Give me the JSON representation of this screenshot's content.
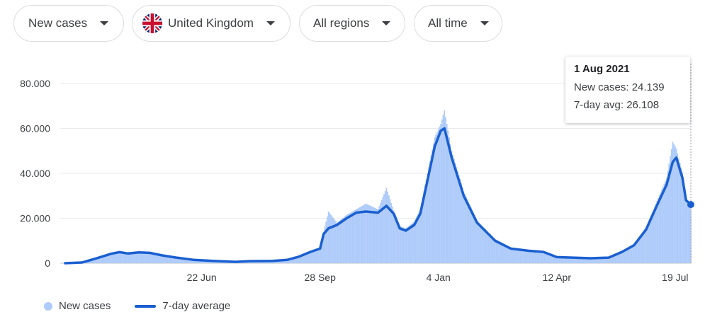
{
  "filters": {
    "metric": "New cases",
    "country": "United Kingdom",
    "region": "All regions",
    "period": "All time"
  },
  "tooltip": {
    "date": "1 Aug 2021",
    "new_cases": "New cases: 24.139",
    "avg": "7-day avg: 26.108"
  },
  "legend": {
    "new_cases": "New cases",
    "avg": "7-day average"
  },
  "colors": {
    "bars": "#aecbfa",
    "line": "#1a5fd0",
    "grid": "#e8eaed"
  },
  "chart_data": {
    "type": "bar",
    "overlay": "line",
    "x_start": "2020-03-01",
    "x_end": "2021-08-01",
    "ylim": [
      0,
      80000
    ],
    "y_ticks": [
      "0",
      "20.000",
      "40.000",
      "60.000",
      "80.000"
    ],
    "y_tick_values": [
      0,
      20000,
      40000,
      60000,
      80000
    ],
    "x_ticks": [
      {
        "label": "22 Jun",
        "date": "2020-06-22"
      },
      {
        "label": "28 Sep",
        "date": "2020-09-28"
      },
      {
        "label": "4 Jan",
        "date": "2021-01-04"
      },
      {
        "label": "12 Apr",
        "date": "2021-04-12"
      },
      {
        "label": "19 Jul",
        "date": "2021-07-19"
      }
    ],
    "series": [
      {
        "name": "7-day average",
        "points": [
          [
            "2020-03-01",
            0
          ],
          [
            "2020-03-15",
            300
          ],
          [
            "2020-03-29",
            2500
          ],
          [
            "2020-04-08",
            4200
          ],
          [
            "2020-04-15",
            4900
          ],
          [
            "2020-04-22",
            4300
          ],
          [
            "2020-05-01",
            4800
          ],
          [
            "2020-05-10",
            4600
          ],
          [
            "2020-05-20",
            3500
          ],
          [
            "2020-06-01",
            2500
          ],
          [
            "2020-06-15",
            1500
          ],
          [
            "2020-07-01",
            1000
          ],
          [
            "2020-07-20",
            600
          ],
          [
            "2020-08-01",
            900
          ],
          [
            "2020-08-20",
            1000
          ],
          [
            "2020-09-01",
            1500
          ],
          [
            "2020-09-10",
            2800
          ],
          [
            "2020-09-20",
            5000
          ],
          [
            "2020-09-28",
            6500
          ],
          [
            "2020-10-01",
            13000
          ],
          [
            "2020-10-05",
            15500
          ],
          [
            "2020-10-12",
            17000
          ],
          [
            "2020-10-20",
            20000
          ],
          [
            "2020-10-28",
            22500
          ],
          [
            "2020-11-05",
            23000
          ],
          [
            "2020-11-15",
            22500
          ],
          [
            "2020-11-22",
            25500
          ],
          [
            "2020-11-28",
            22000
          ],
          [
            "2020-12-03",
            15500
          ],
          [
            "2020-12-08",
            14500
          ],
          [
            "2020-12-15",
            17000
          ],
          [
            "2020-12-20",
            22000
          ],
          [
            "2020-12-26",
            37000
          ],
          [
            "2021-01-01",
            52000
          ],
          [
            "2021-01-06",
            59000
          ],
          [
            "2021-01-09",
            60000
          ],
          [
            "2021-01-15",
            47000
          ],
          [
            "2021-01-25",
            30000
          ],
          [
            "2021-02-05",
            18000
          ],
          [
            "2021-02-20",
            10000
          ],
          [
            "2021-03-05",
            6500
          ],
          [
            "2021-03-20",
            5500
          ],
          [
            "2021-04-01",
            5000
          ],
          [
            "2021-04-12",
            2700
          ],
          [
            "2021-04-25",
            2500
          ],
          [
            "2021-05-10",
            2200
          ],
          [
            "2021-05-25",
            2500
          ],
          [
            "2021-06-05",
            5000
          ],
          [
            "2021-06-15",
            8000
          ],
          [
            "2021-06-25",
            15000
          ],
          [
            "2021-07-05",
            27000
          ],
          [
            "2021-07-12",
            35000
          ],
          [
            "2021-07-17",
            45000
          ],
          [
            "2021-07-20",
            47000
          ],
          [
            "2021-07-25",
            38000
          ],
          [
            "2021-07-28",
            28000
          ],
          [
            "2021-08-01",
            26108
          ]
        ]
      },
      {
        "name": "New cases",
        "points": [
          [
            "2020-03-01",
            0
          ],
          [
            "2020-03-15",
            400
          ],
          [
            "2020-03-29",
            2600
          ],
          [
            "2020-04-08",
            4400
          ],
          [
            "2020-04-15",
            5200
          ],
          [
            "2020-04-22",
            4600
          ],
          [
            "2020-05-01",
            5100
          ],
          [
            "2020-05-10",
            4800
          ],
          [
            "2020-05-20",
            3700
          ],
          [
            "2020-06-01",
            2600
          ],
          [
            "2020-06-15",
            1600
          ],
          [
            "2020-07-01",
            1050
          ],
          [
            "2020-07-20",
            650
          ],
          [
            "2020-08-01",
            950
          ],
          [
            "2020-08-20",
            1050
          ],
          [
            "2020-09-01",
            1600
          ],
          [
            "2020-09-10",
            3000
          ],
          [
            "2020-09-20",
            5400
          ],
          [
            "2020-09-28",
            7000
          ],
          [
            "2020-10-01",
            14000
          ],
          [
            "2020-10-05",
            23000
          ],
          [
            "2020-10-12",
            18000
          ],
          [
            "2020-10-20",
            21500
          ],
          [
            "2020-10-28",
            24000
          ],
          [
            "2020-11-05",
            26500
          ],
          [
            "2020-11-15",
            24000
          ],
          [
            "2020-11-22",
            33500
          ],
          [
            "2020-11-28",
            23500
          ],
          [
            "2020-12-03",
            16500
          ],
          [
            "2020-12-08",
            15500
          ],
          [
            "2020-12-15",
            18500
          ],
          [
            "2020-12-20",
            24000
          ],
          [
            "2020-12-26",
            40000
          ],
          [
            "2021-01-01",
            56000
          ],
          [
            "2021-01-06",
            62000
          ],
          [
            "2021-01-09",
            68000
          ],
          [
            "2021-01-15",
            50000
          ],
          [
            "2021-01-25",
            32000
          ],
          [
            "2021-02-05",
            19000
          ],
          [
            "2021-02-20",
            10800
          ],
          [
            "2021-03-05",
            7000
          ],
          [
            "2021-03-20",
            5900
          ],
          [
            "2021-04-01",
            5300
          ],
          [
            "2021-04-12",
            2900
          ],
          [
            "2021-04-25",
            2700
          ],
          [
            "2021-05-10",
            2400
          ],
          [
            "2021-05-25",
            2700
          ],
          [
            "2021-06-05",
            5400
          ],
          [
            "2021-06-15",
            8600
          ],
          [
            "2021-06-25",
            16200
          ],
          [
            "2021-07-05",
            29000
          ],
          [
            "2021-07-12",
            38000
          ],
          [
            "2021-07-17",
            54000
          ],
          [
            "2021-07-20",
            51000
          ],
          [
            "2021-07-25",
            40500
          ],
          [
            "2021-07-28",
            29500
          ],
          [
            "2021-08-01",
            24139
          ]
        ]
      }
    ]
  }
}
